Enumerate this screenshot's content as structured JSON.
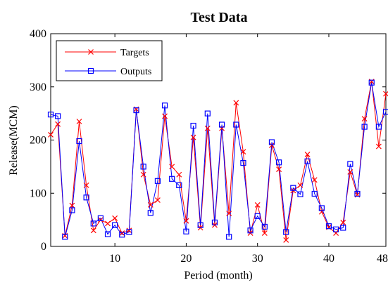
{
  "chart_data": {
    "type": "line",
    "title": "Test Data",
    "xlabel": "Period (month)",
    "ylabel": "Release(MCM)",
    "xlim": [
      1,
      48
    ],
    "ylim": [
      0,
      400
    ],
    "xticks": [
      10,
      20,
      30,
      40,
      48
    ],
    "yticks": [
      0,
      100,
      200,
      300,
      400
    ],
    "grid": false,
    "legend_position": "top-left",
    "x": [
      1,
      2,
      3,
      4,
      5,
      6,
      7,
      8,
      9,
      10,
      11,
      12,
      13,
      14,
      15,
      16,
      17,
      18,
      19,
      20,
      21,
      22,
      23,
      24,
      25,
      26,
      27,
      28,
      29,
      30,
      31,
      32,
      33,
      34,
      35,
      36,
      37,
      38,
      39,
      40,
      41,
      42,
      43,
      44,
      45,
      46,
      47,
      48
    ],
    "series": [
      {
        "name": "Targets",
        "color": "#ff0000",
        "marker": "x",
        "values": [
          210,
          230,
          20,
          77,
          235,
          115,
          30,
          50,
          43,
          53,
          25,
          30,
          258,
          135,
          78,
          87,
          245,
          150,
          135,
          48,
          205,
          35,
          222,
          40,
          222,
          62,
          270,
          178,
          25,
          78,
          25,
          190,
          145,
          12,
          105,
          115,
          173,
          125,
          65,
          36,
          25,
          45,
          140,
          97,
          240,
          310,
          188,
          287
        ]
      },
      {
        "name": "Outputs",
        "color": "#0000ff",
        "marker": "square",
        "values": [
          248,
          245,
          18,
          68,
          198,
          92,
          43,
          53,
          23,
          40,
          22,
          27,
          256,
          150,
          63,
          123,
          265,
          127,
          115,
          28,
          227,
          40,
          250,
          45,
          229,
          18,
          229,
          157,
          30,
          57,
          37,
          196,
          158,
          27,
          110,
          98,
          160,
          99,
          72,
          38,
          32,
          35,
          155,
          99,
          225,
          308,
          225,
          253
        ]
      }
    ]
  }
}
